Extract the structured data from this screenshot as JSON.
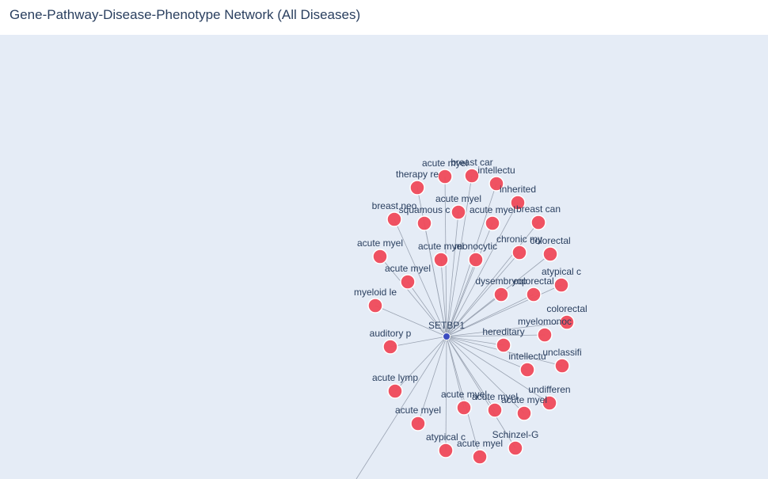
{
  "title": "Gene-Pathway-Disease-Phenotype Network (All Diseases)",
  "colors": {
    "plot_bg": "#e5ecf6",
    "gene_node": "#3b4cc0",
    "disease_node": "#ef4a5a",
    "node_outline": "#ffffff",
    "edge": "#9aa3b2",
    "text": "#2a3f5f"
  },
  "center_node": {
    "label": "SETBP1",
    "type": "gene"
  },
  "nodes": [
    {
      "label": "acute myel",
      "type": "disease"
    },
    {
      "label": "breast car",
      "type": "disease"
    },
    {
      "label": "therapy re",
      "type": "disease"
    },
    {
      "label": "intellectu",
      "type": "disease"
    },
    {
      "label": "inherited",
      "type": "disease"
    },
    {
      "label": "acute myel",
      "type": "disease"
    },
    {
      "label": "breast neo",
      "type": "disease"
    },
    {
      "label": "squamous c",
      "type": "disease"
    },
    {
      "label": "acute myel",
      "type": "disease"
    },
    {
      "label": "breast can",
      "type": "disease"
    },
    {
      "label": "acute myel",
      "type": "disease"
    },
    {
      "label": "chronic my",
      "type": "disease"
    },
    {
      "label": "colorectal",
      "type": "disease"
    },
    {
      "label": "acute myel",
      "type": "disease"
    },
    {
      "label": "monocytic",
      "type": "disease"
    },
    {
      "label": "acute myel",
      "type": "disease"
    },
    {
      "label": "atypical c",
      "type": "disease"
    },
    {
      "label": "myeloid le",
      "type": "disease"
    },
    {
      "label": "dysembryop",
      "type": "disease"
    },
    {
      "label": "colorectal",
      "type": "disease"
    },
    {
      "label": "colorectal",
      "type": "disease"
    },
    {
      "label": "myelomonoc",
      "type": "disease"
    },
    {
      "label": "auditory p",
      "type": "disease"
    },
    {
      "label": "hereditary",
      "type": "disease"
    },
    {
      "label": "intellectu",
      "type": "disease"
    },
    {
      "label": "unclassifi",
      "type": "disease"
    },
    {
      "label": "acute lymp",
      "type": "disease"
    },
    {
      "label": "undifferen",
      "type": "disease"
    },
    {
      "label": "acute myel",
      "type": "disease"
    },
    {
      "label": "acute myel",
      "type": "disease"
    },
    {
      "label": "acute myel",
      "type": "disease"
    },
    {
      "label": "acute myel",
      "type": "disease"
    },
    {
      "label": "Schinzel-G",
      "type": "disease"
    },
    {
      "label": "atypical c",
      "type": "disease"
    },
    {
      "label": "acute myel",
      "type": "disease"
    }
  ]
}
